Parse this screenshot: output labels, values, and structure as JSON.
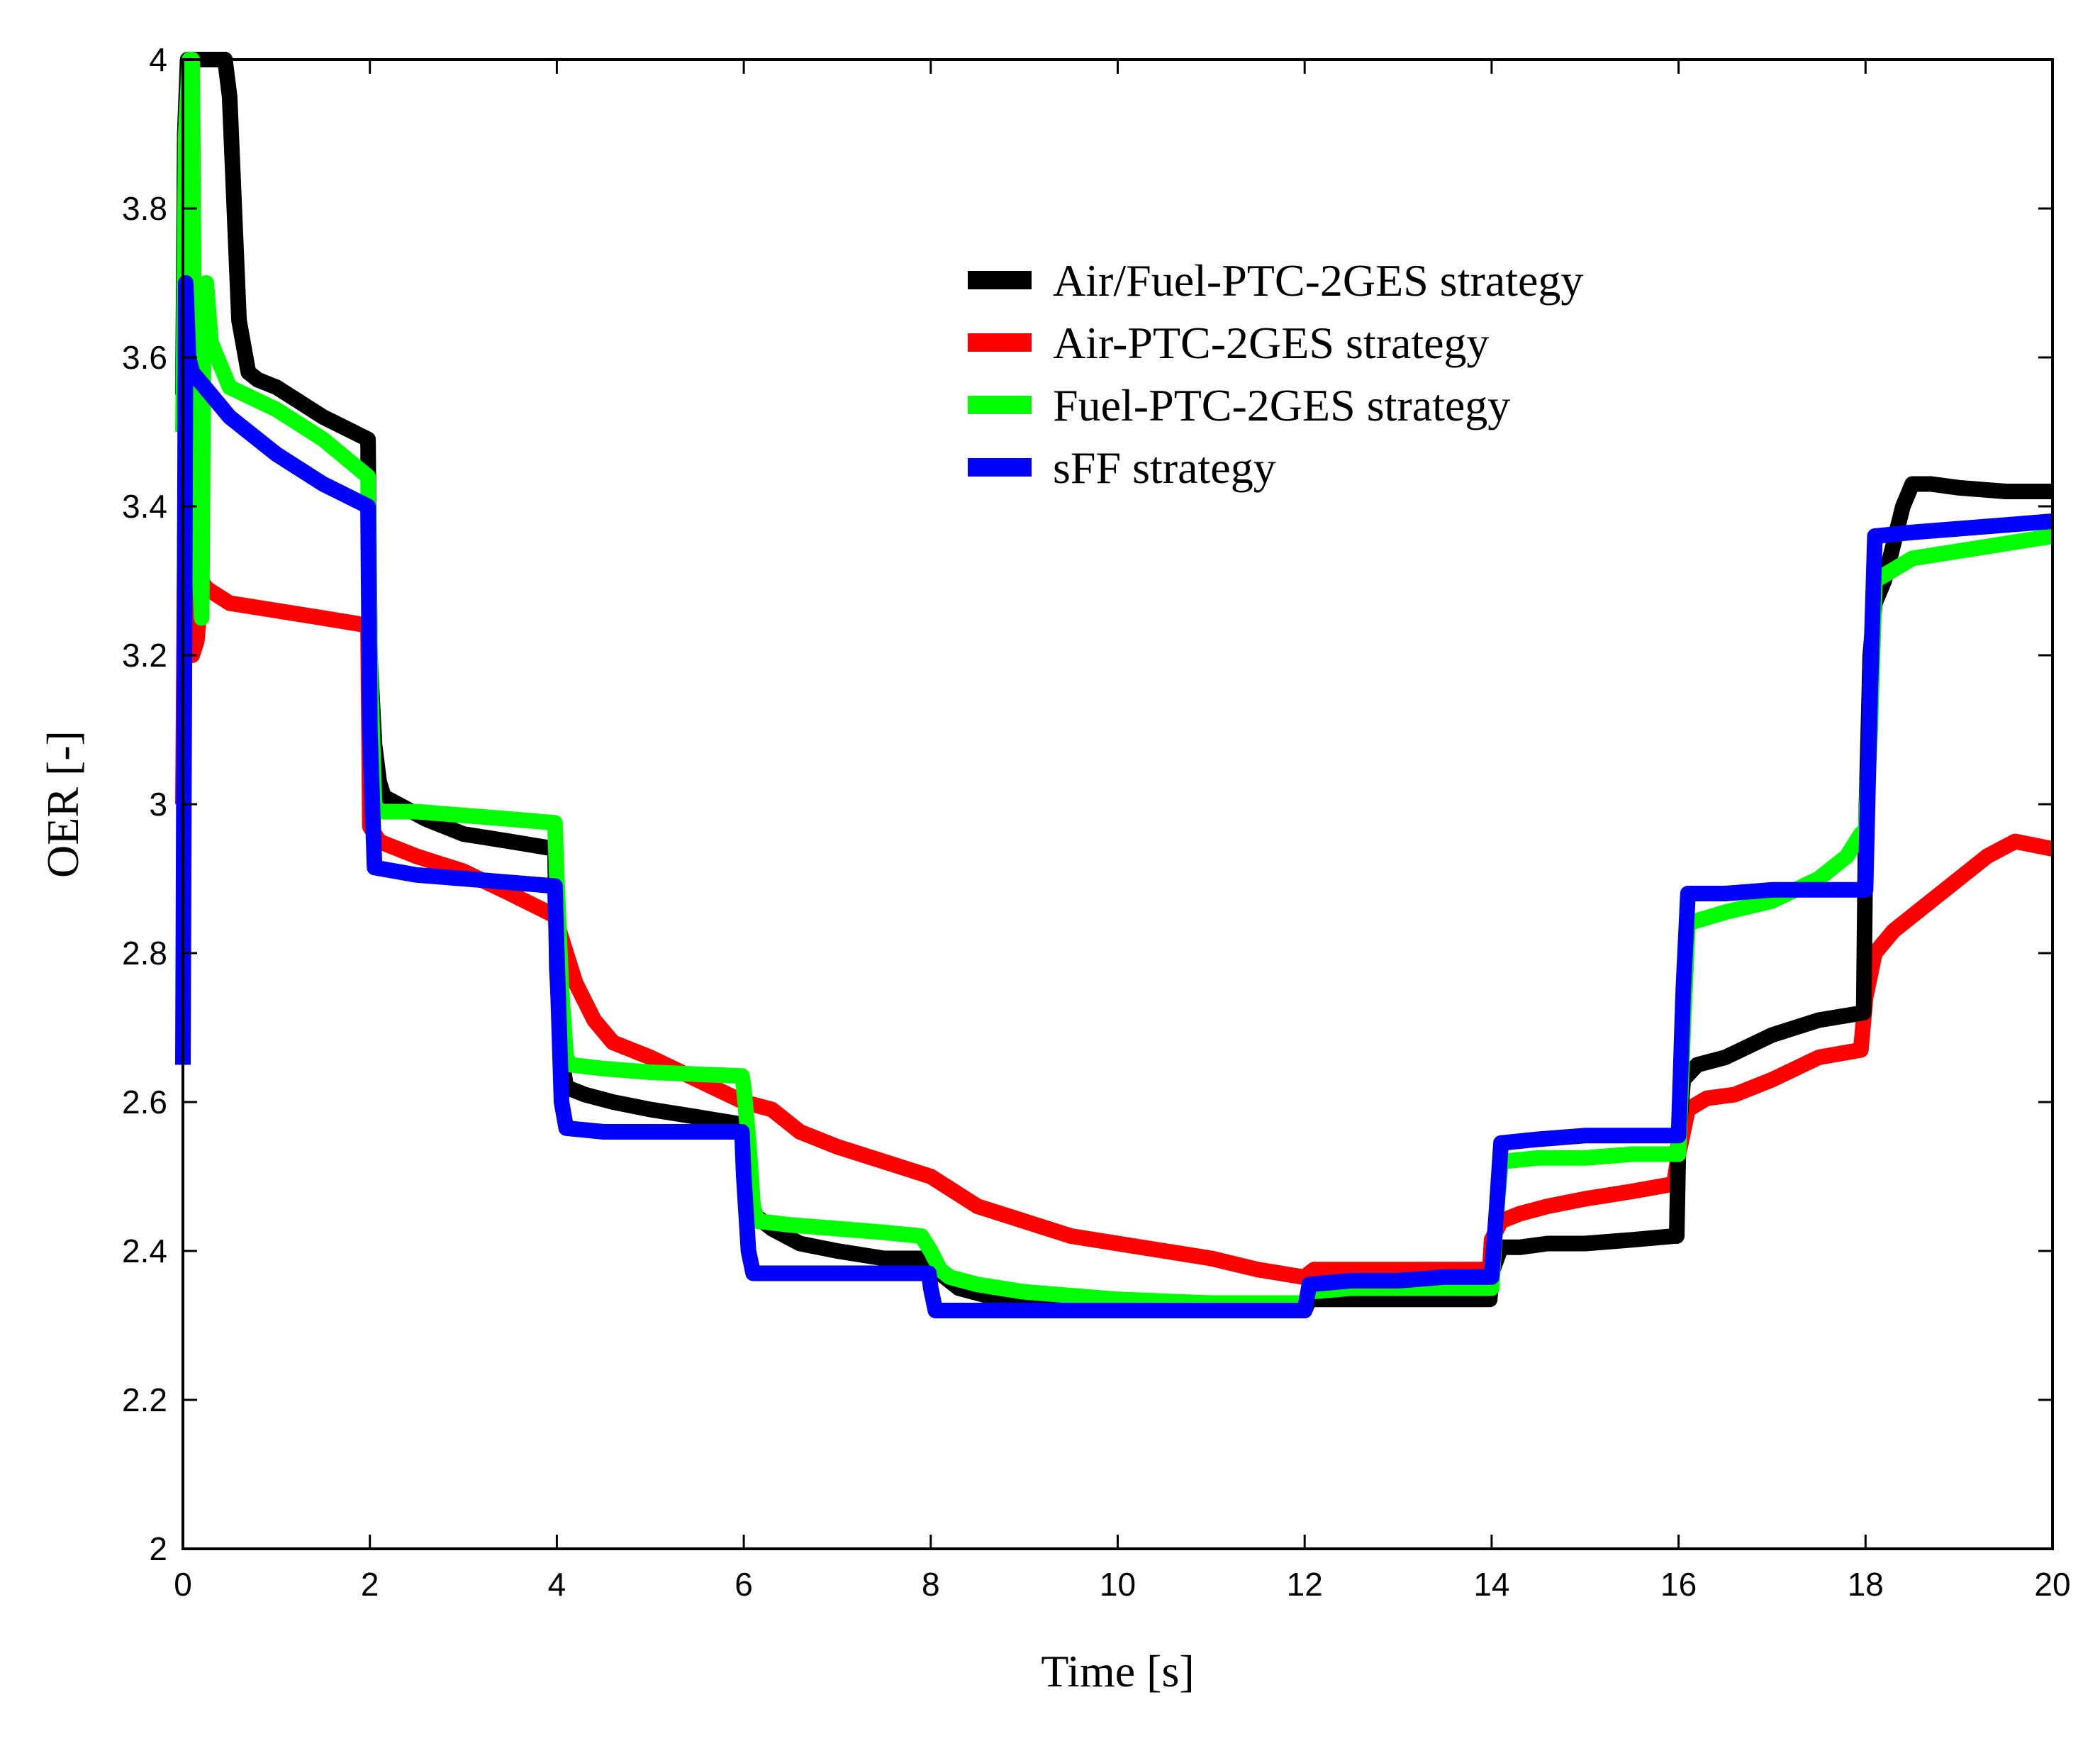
{
  "chart_data": {
    "type": "line",
    "title": "",
    "xlabel": "Time [s]",
    "ylabel": "OER [-]",
    "xlim": [
      0,
      20
    ],
    "ylim": [
      2,
      4
    ],
    "xticks": [
      0,
      2,
      4,
      6,
      8,
      10,
      12,
      14,
      16,
      18,
      20
    ],
    "yticks": [
      2,
      2.2,
      2.4,
      2.6,
      2.8,
      3,
      3.2,
      3.4,
      3.6,
      3.8,
      4
    ],
    "xtick_labels": [
      "0",
      "2",
      "4",
      "6",
      "8",
      "10",
      "12",
      "14",
      "16",
      "18",
      "20"
    ],
    "ytick_labels": [
      "2",
      "2.2",
      "2.4",
      "2.6",
      "2.8",
      "3",
      "3.2",
      "3.4",
      "3.6",
      "3.8",
      "4"
    ],
    "grid": false,
    "legend_position": "upper-center",
    "series": [
      {
        "name": "Air/Fuel-PTC-2GES strategy",
        "color": "#000000",
        "x": [
          0,
          0.02,
          0.05,
          0.1,
          0.3,
          0.4,
          0.45,
          0.5,
          0.55,
          0.6,
          0.7,
          0.8,
          1,
          1.5,
          1.98,
          2.0,
          2.05,
          2.1,
          2.15,
          2.3,
          2.6,
          3,
          3.5,
          3.98,
          4.0,
          4.05,
          4.1,
          4.3,
          4.6,
          5,
          5.5,
          5.98,
          6.0,
          6.05,
          6.1,
          6.3,
          6.6,
          7,
          7.5,
          7.98,
          8.0,
          8.1,
          8.3,
          8.6,
          9,
          10,
          11,
          11.98,
          12.0,
          12.05,
          12.5,
          13,
          13.5,
          13.98,
          14.0,
          14.1,
          14.3,
          14.6,
          15,
          15.5,
          15.95,
          15.98,
          16.0,
          16.05,
          16.2,
          16.5,
          17,
          17.5,
          17.98,
          18.0,
          18.05,
          18.1,
          18.2,
          18.3,
          18.4,
          18.5,
          18.7,
          19,
          19.5,
          20
        ],
        "y": [
          3.55,
          3.9,
          4.0,
          4.0,
          4.0,
          4.0,
          4.0,
          3.95,
          3.8,
          3.65,
          3.58,
          3.57,
          3.56,
          3.52,
          3.49,
          3.2,
          3.08,
          3.03,
          3.01,
          3.0,
          2.98,
          2.96,
          2.95,
          2.94,
          2.78,
          2.66,
          2.62,
          2.61,
          2.6,
          2.59,
          2.58,
          2.57,
          2.5,
          2.47,
          2.45,
          2.43,
          2.41,
          2.4,
          2.39,
          2.39,
          2.38,
          2.37,
          2.35,
          2.34,
          2.33,
          2.325,
          2.325,
          2.325,
          2.32,
          2.335,
          2.335,
          2.335,
          2.335,
          2.335,
          2.37,
          2.405,
          2.405,
          2.41,
          2.41,
          2.415,
          2.42,
          2.42,
          2.55,
          2.63,
          2.65,
          2.66,
          2.69,
          2.71,
          2.72,
          2.95,
          3.2,
          3.27,
          3.3,
          3.35,
          3.4,
          3.43,
          3.43,
          3.425,
          3.42,
          3.42
        ]
      },
      {
        "name": "Air-PTC-2GES strategy",
        "color": "#ff0000",
        "x": [
          0,
          0.03,
          0.06,
          0.1,
          0.15,
          0.2,
          0.25,
          0.5,
          1,
          1.5,
          1.98,
          2.0,
          2.1,
          2.2,
          2.5,
          3,
          3.5,
          3.98,
          4.05,
          4.2,
          4.4,
          4.6,
          5,
          5.5,
          6,
          6.3,
          6.6,
          7,
          7.5,
          8,
          8.5,
          9,
          9.5,
          10,
          10.5,
          11,
          11.5,
          11.98,
          12.0,
          12.1,
          12.5,
          13,
          13.5,
          13.98,
          14.0,
          14.1,
          14.3,
          14.6,
          15,
          15.5,
          15.95,
          16.0,
          16.1,
          16.3,
          16.6,
          17,
          17.5,
          17.95,
          18.0,
          18.1,
          18.3,
          18.6,
          19,
          19.3,
          19.6,
          20
        ],
        "y": [
          3.0,
          3.52,
          3.4,
          3.2,
          3.22,
          3.3,
          3.29,
          3.27,
          3.26,
          3.25,
          3.24,
          2.97,
          2.95,
          2.945,
          2.93,
          2.91,
          2.88,
          2.85,
          2.82,
          2.76,
          2.71,
          2.68,
          2.66,
          2.63,
          2.6,
          2.59,
          2.56,
          2.54,
          2.52,
          2.5,
          2.46,
          2.44,
          2.42,
          2.41,
          2.4,
          2.39,
          2.375,
          2.365,
          2.365,
          2.375,
          2.375,
          2.375,
          2.375,
          2.375,
          2.415,
          2.44,
          2.45,
          2.46,
          2.47,
          2.48,
          2.49,
          2.53,
          2.59,
          2.605,
          2.61,
          2.63,
          2.66,
          2.67,
          2.74,
          2.8,
          2.83,
          2.86,
          2.9,
          2.93,
          2.95,
          2.94
        ]
      },
      {
        "name": "Fuel-PTC-2GES strategy",
        "color": "#00ff00",
        "x": [
          0,
          0.03,
          0.07,
          0.1,
          0.12,
          0.15,
          0.2,
          0.22,
          0.25,
          0.3,
          0.5,
          1,
          1.5,
          1.98,
          2.0,
          2.05,
          2.1,
          2.5,
          3,
          3.5,
          3.98,
          4.0,
          4.05,
          4.1,
          4.15,
          4.5,
          5,
          5.98,
          6.0,
          6.05,
          6.1,
          6.15,
          6.5,
          7,
          7.5,
          7.9,
          8.0,
          8.1,
          8.2,
          8.5,
          9,
          10,
          11,
          11.98,
          12.0,
          12.05,
          12.5,
          13,
          13.5,
          13.98,
          14.0,
          14.05,
          14.1,
          14.5,
          15,
          15.5,
          15.98,
          16.0,
          16.05,
          16.1,
          16.5,
          17,
          17.5,
          17.8,
          17.95,
          18.0,
          18.05,
          18.1,
          18.5,
          19,
          19.5,
          20
        ],
        "y": [
          3.5,
          3.9,
          4.0,
          4.0,
          3.6,
          3.4,
          3.25,
          3.6,
          3.7,
          3.62,
          3.56,
          3.53,
          3.49,
          3.44,
          3.2,
          3.0,
          2.99,
          2.99,
          2.985,
          2.98,
          2.975,
          2.9,
          2.75,
          2.66,
          2.65,
          2.645,
          2.64,
          2.635,
          2.62,
          2.55,
          2.46,
          2.44,
          2.435,
          2.43,
          2.425,
          2.42,
          2.4,
          2.375,
          2.365,
          2.355,
          2.345,
          2.335,
          2.33,
          2.33,
          2.33,
          2.345,
          2.35,
          2.35,
          2.35,
          2.35,
          2.35,
          2.45,
          2.52,
          2.525,
          2.525,
          2.53,
          2.53,
          2.53,
          2.7,
          2.84,
          2.855,
          2.87,
          2.9,
          2.93,
          2.96,
          2.96,
          3.1,
          3.3,
          3.33,
          3.34,
          3.35,
          3.36
        ]
      },
      {
        "name": "sFF strategy",
        "color": "#0000ff",
        "x": [
          0,
          0.03,
          0.06,
          0.1,
          0.3,
          0.5,
          1,
          1.5,
          1.98,
          2.0,
          2.05,
          2.5,
          3,
          3.5,
          3.98,
          4.0,
          4.05,
          4.1,
          4.5,
          5,
          5.5,
          5.98,
          6.0,
          6.05,
          6.1,
          6.5,
          7,
          7.5,
          7.98,
          8.0,
          8.05,
          8.5,
          9,
          10,
          11,
          11.98,
          12.0,
          12.05,
          12.5,
          13,
          13.5,
          13.98,
          14.0,
          14.05,
          14.1,
          14.5,
          15,
          15.5,
          15.98,
          16.0,
          16.05,
          16.1,
          16.5,
          17,
          17.5,
          17.98,
          18.0,
          18.05,
          18.1,
          18.5,
          19,
          19.5,
          20
        ],
        "y": [
          2.65,
          3.7,
          3.6,
          3.58,
          3.55,
          3.52,
          3.47,
          3.43,
          3.4,
          3.1,
          2.915,
          2.905,
          2.9,
          2.895,
          2.89,
          2.8,
          2.6,
          2.565,
          2.56,
          2.56,
          2.56,
          2.56,
          2.5,
          2.4,
          2.37,
          2.37,
          2.37,
          2.37,
          2.37,
          2.35,
          2.32,
          2.32,
          2.32,
          2.32,
          2.32,
          2.32,
          2.32,
          2.355,
          2.36,
          2.36,
          2.365,
          2.365,
          2.365,
          2.45,
          2.545,
          2.55,
          2.555,
          2.555,
          2.555,
          2.555,
          2.75,
          2.88,
          2.88,
          2.885,
          2.885,
          2.885,
          2.885,
          3.15,
          3.36,
          3.365,
          3.37,
          3.375,
          3.38
        ]
      }
    ]
  }
}
